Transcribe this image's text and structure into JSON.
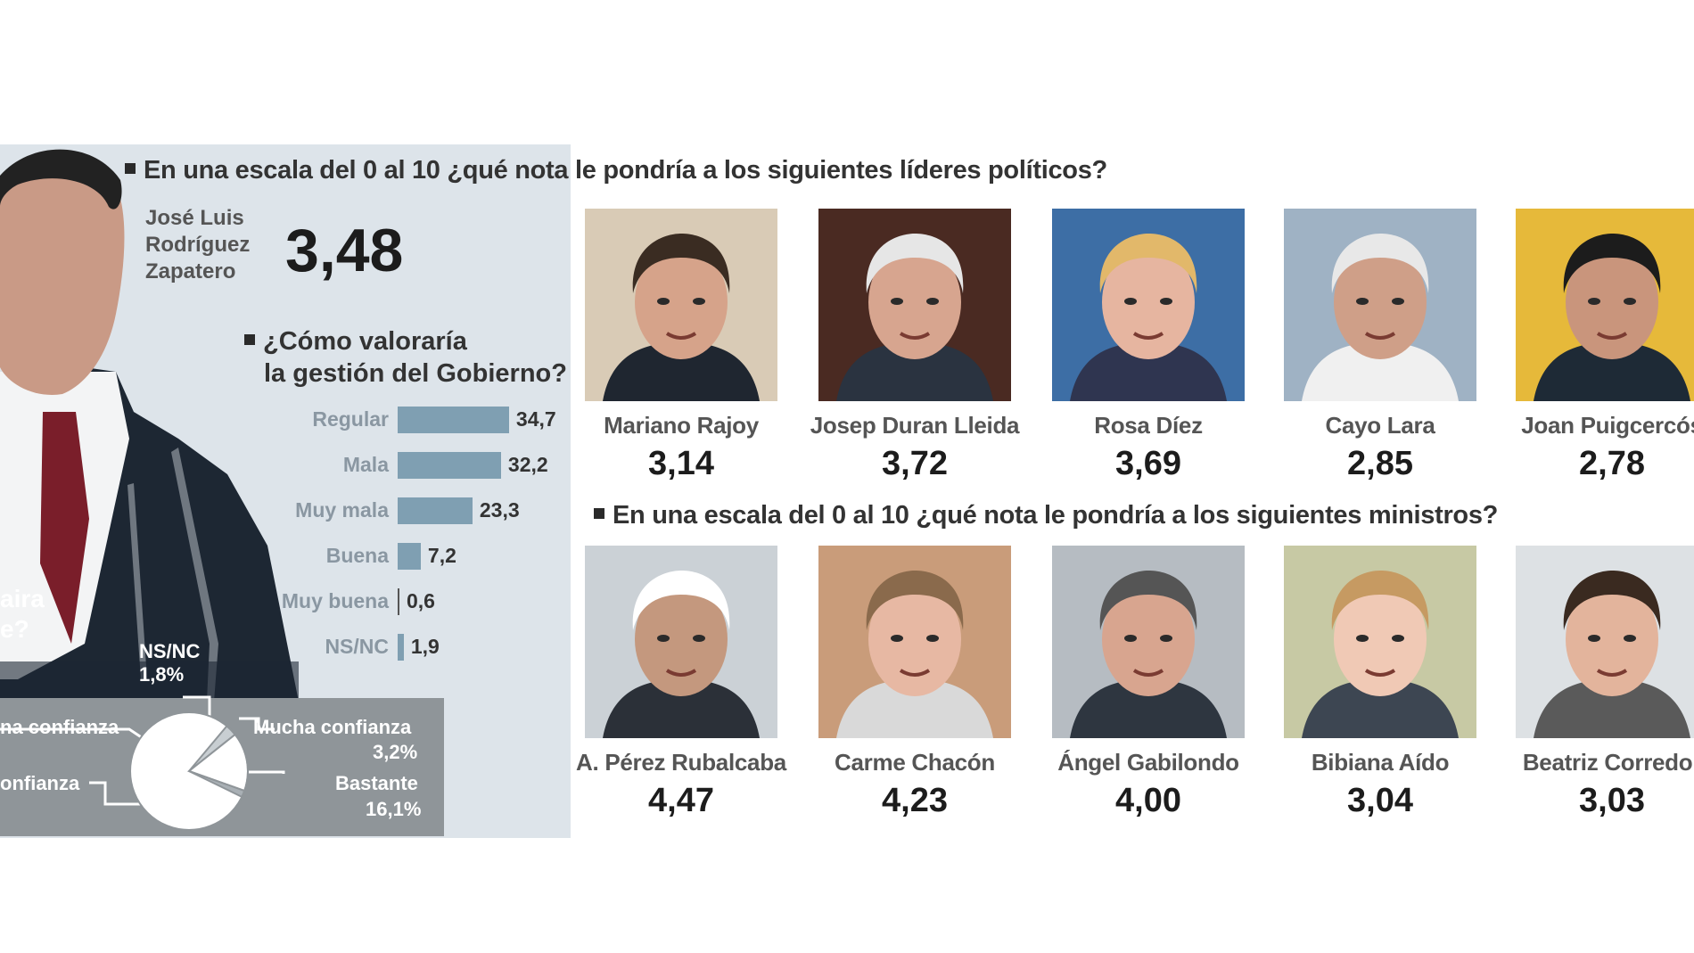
{
  "header": {
    "leaders_question": "En una escala del 0 al 10 ¿qué nota le pondría a los siguientes líderes políticos?",
    "ministers_question": "En una escala del 0 al 10 ¿qué nota le pondría a los siguientes ministros?"
  },
  "zapatero": {
    "name_line1": "José Luis",
    "name_line2": "Rodríguez",
    "name_line3": "Zapatero",
    "score": "3,48",
    "lean_text_1": "aira",
    "lean_text_2": "e?"
  },
  "gestion": {
    "question_line1": "¿Cómo valoraría",
    "question_line2": "la gestión del Gobierno?"
  },
  "confianza": {
    "nsnc_label": "NS/NC",
    "nsnc_value": "1,8%",
    "left_label_1": "na confianza",
    "left_label_2": "onfianza",
    "right_label_1": "Mucha confianza",
    "right_value_1": "3,2%",
    "right_label_2": "Bastante",
    "right_value_2": "16,1%"
  },
  "chart_data": [
    {
      "type": "bar",
      "title": "¿Cómo valoraría la gestión del Gobierno?",
      "categories": [
        "Regular",
        "Mala",
        "Muy mala",
        "Buena",
        "Muy buena",
        "NS/NC"
      ],
      "values": [
        34.7,
        32.2,
        23.3,
        7.2,
        0.6,
        1.9
      ],
      "labels": [
        "34,7",
        "32,2",
        "23,3",
        "7,2",
        "0,6",
        "1,9"
      ],
      "xlim": [
        0,
        35
      ]
    },
    {
      "type": "pie",
      "slices": [
        {
          "label": "Mucha confianza",
          "value": 3.2,
          "text": "3,2%"
        },
        {
          "label": "Bastante",
          "value": 16.1,
          "text": "16,1%"
        },
        {
          "label": "NS/NC",
          "value": 1.8,
          "text": "1,8%"
        }
      ]
    },
    {
      "type": "table",
      "title": "En una escala del 0 al 10 ¿qué nota le pondría a los siguientes líderes políticos?",
      "rows": [
        {
          "name": "Mariano Rajoy",
          "score": 3.14,
          "text": "3,14"
        },
        {
          "name": "Josep Duran Lleida",
          "score": 3.72,
          "text": "3,72"
        },
        {
          "name": "Rosa Díez",
          "score": 3.69,
          "text": "3,69"
        },
        {
          "name": "Cayo Lara",
          "score": 2.85,
          "text": "2,85"
        },
        {
          "name": "Joan Puigcercós",
          "score": 2.78,
          "text": "2,78"
        }
      ]
    },
    {
      "type": "table",
      "title": "En una escala del 0 al 10 ¿qué nota le pondría a los siguientes ministros?",
      "rows": [
        {
          "name": "A. Pérez Rubalcaba",
          "score": 4.47,
          "text": "4,47"
        },
        {
          "name": "Carme Chacón",
          "score": 4.23,
          "text": "4,23"
        },
        {
          "name": "Ángel Gabilondo",
          "score": 4.0,
          "text": "4,00"
        },
        {
          "name": "Bibiana Aído",
          "score": 3.04,
          "text": "3,04"
        },
        {
          "name": "Beatriz Corredor",
          "score": 3.03,
          "text": "3,03"
        }
      ]
    }
  ],
  "colors": {
    "panel_bg": "#dde4ea",
    "bar_fill": "#7f9fb2",
    "trust_panel": "#8f9599"
  }
}
